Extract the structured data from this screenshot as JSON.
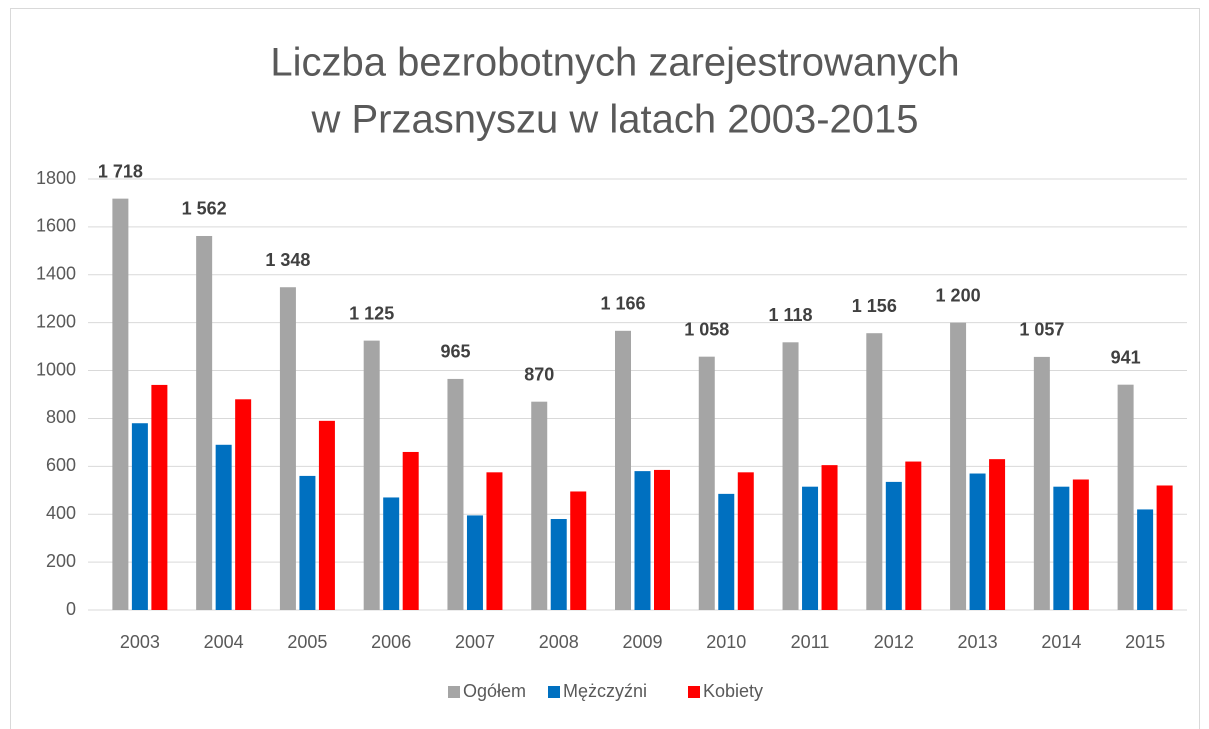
{
  "chart_data": {
    "type": "bar",
    "title": [
      "Liczba bezrobotnych zarejestrowanych",
      "w Przasnyszu w latach 2003-2015"
    ],
    "categories": [
      "2003",
      "2004",
      "2005",
      "2006",
      "2007",
      "2008",
      "2009",
      "2010",
      "2011",
      "2012",
      "2013",
      "2014",
      "2015"
    ],
    "series": [
      {
        "name": "Ogółem",
        "color": "#a5a5a5",
        "values": [
          1718,
          1562,
          1348,
          1125,
          965,
          870,
          1166,
          1058,
          1118,
          1156,
          1200,
          1057,
          941
        ],
        "value_labels": [
          "1 718",
          "1 562",
          "1 348",
          "1 125",
          "965",
          "870",
          "1 166",
          "1 058",
          "1 118",
          "1 156",
          "1 200",
          "1 057",
          "941"
        ]
      },
      {
        "name": "Mężczyźni",
        "color": "#0070c0",
        "values": [
          780,
          690,
          560,
          470,
          395,
          380,
          580,
          485,
          515,
          535,
          570,
          515,
          420
        ]
      },
      {
        "name": "Kobiety",
        "color": "#ff0000",
        "values": [
          940,
          880,
          790,
          660,
          575,
          495,
          585,
          575,
          605,
          620,
          630,
          545,
          520
        ]
      }
    ],
    "ylim": [
      0,
      1800
    ],
    "yticks": [
      0,
      200,
      400,
      600,
      800,
      1000,
      1200,
      1400,
      1600,
      1800
    ],
    "grid": true,
    "legend": "bottom"
  }
}
